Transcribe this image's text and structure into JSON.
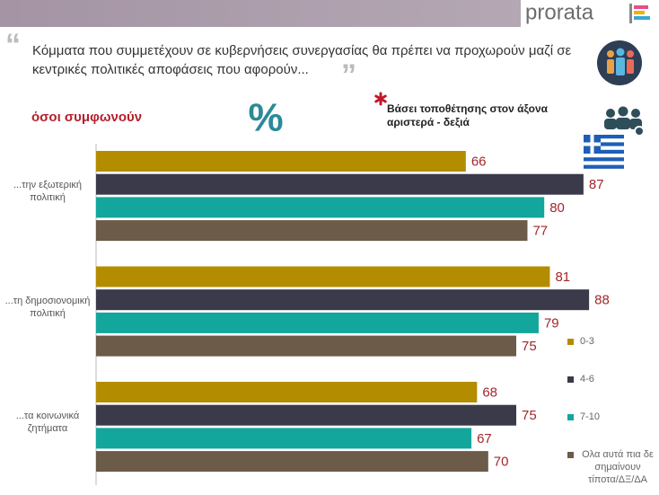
{
  "brand": "prorata",
  "chart_data": {
    "type": "bar",
    "orientation": "horizontal",
    "title": "Κόμματα που συμμετέχουν σε κυβερνήσεις συνεργασίας θα πρέπει να προχωρούν μαζί σε κεντρικές πολιτικές αποφάσεις που αφορούν...",
    "subtitle": "όσοι συμφωνούν",
    "annotation": "%",
    "note": "Βάσει τοποθέτησης στον άξονα αριστερά - δεξιά",
    "categories": [
      "...την εξωτερική πολιτική",
      "...τη δημοσιονομική πολιτική",
      "...τα κοινωνικά ζητήματα"
    ],
    "series": [
      {
        "name": "0-3",
        "color": "#b48c00",
        "values": [
          66,
          81,
          68
        ]
      },
      {
        "name": "4-6",
        "color": "#3b3a4b",
        "values": [
          87,
          88,
          75
        ]
      },
      {
        "name": "7-10",
        "color": "#13a69c",
        "values": [
          80,
          79,
          67
        ]
      },
      {
        "name": "Ολα αυτά πια δε σημαίνουν τίποτα/ΔΞ/ΔΑ",
        "color": "#6b5b48",
        "values": [
          77,
          75,
          70
        ]
      }
    ],
    "legend": "right"
  }
}
